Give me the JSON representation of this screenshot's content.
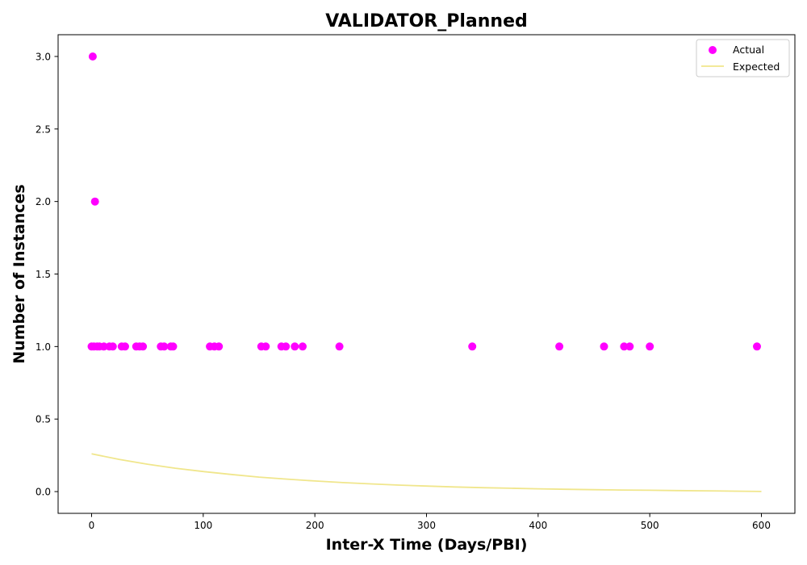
{
  "chart_data": {
    "type": "scatter",
    "title": "VALIDATOR_Planned",
    "xlabel": "Inter-X Time (Days/PBI)",
    "ylabel": "Number of Instances",
    "xlim": [
      -30,
      630
    ],
    "ylim": [
      -0.15,
      3.15
    ],
    "x_ticks": [
      0,
      100,
      200,
      300,
      400,
      500,
      600
    ],
    "y_ticks": [
      0.0,
      0.5,
      1.0,
      1.5,
      2.0,
      2.5,
      3.0
    ],
    "x_tick_labels": [
      "0",
      "100",
      "200",
      "300",
      "400",
      "500",
      "600"
    ],
    "y_tick_labels": [
      "0.0",
      "0.5",
      "1.0",
      "1.5",
      "2.0",
      "2.5",
      "3.0"
    ],
    "grid": false,
    "legend_position": "top-right",
    "series": [
      {
        "name": "Actual",
        "kind": "scatter",
        "color": "#ff00ff",
        "points": [
          [
            1,
            3
          ],
          [
            3,
            2
          ],
          [
            0,
            1
          ],
          [
            2,
            1
          ],
          [
            5,
            1
          ],
          [
            7,
            1
          ],
          [
            11,
            1
          ],
          [
            16,
            1
          ],
          [
            19,
            1
          ],
          [
            27,
            1
          ],
          [
            30,
            1
          ],
          [
            40,
            1
          ],
          [
            43,
            1
          ],
          [
            46,
            1
          ],
          [
            62,
            1
          ],
          [
            65,
            1
          ],
          [
            71,
            1
          ],
          [
            73,
            1
          ],
          [
            106,
            1
          ],
          [
            110,
            1
          ],
          [
            114,
            1
          ],
          [
            152,
            1
          ],
          [
            156,
            1
          ],
          [
            170,
            1
          ],
          [
            174,
            1
          ],
          [
            182,
            1
          ],
          [
            189,
            1
          ],
          [
            222,
            1
          ],
          [
            341,
            1
          ],
          [
            419,
            1
          ],
          [
            459,
            1
          ],
          [
            477,
            1
          ],
          [
            482,
            1
          ],
          [
            500,
            1
          ],
          [
            596,
            1
          ]
        ]
      },
      {
        "name": "Expected",
        "kind": "line",
        "color": "#f0e68c",
        "x": [
          0,
          25,
          50,
          75,
          100,
          125,
          150,
          175,
          200,
          225,
          250,
          275,
          300,
          325,
          350,
          375,
          400,
          425,
          450,
          475,
          500,
          525,
          550,
          575,
          600
        ],
        "y": [
          0.26,
          0.222,
          0.189,
          0.161,
          0.138,
          0.118,
          0.1,
          0.086,
          0.073,
          0.062,
          0.053,
          0.045,
          0.038,
          0.032,
          0.027,
          0.023,
          0.019,
          0.016,
          0.013,
          0.011,
          0.009,
          0.007,
          0.005,
          0.003,
          0.001
        ]
      }
    ]
  }
}
